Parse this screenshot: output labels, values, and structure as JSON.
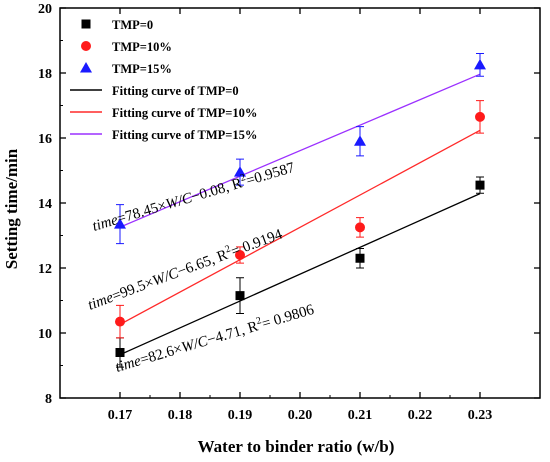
{
  "chart_data": {
    "type": "scatter",
    "xlabel": "Water to binder ratio (w/b)",
    "ylabel": "Setting time/min",
    "xlim": [
      0.16,
      0.24
    ],
    "ylim": [
      8,
      20
    ],
    "x_ticks": [
      0.17,
      0.18,
      0.19,
      0.2,
      0.21,
      0.22,
      0.23
    ],
    "x_tick_labels": [
      "0.17",
      "0.18",
      "0.19",
      "0.20",
      "0.21",
      "0.22",
      "0.23"
    ],
    "y_ticks": [
      8,
      10,
      12,
      14,
      16,
      18,
      20
    ],
    "y_tick_labels": [
      "8",
      "10",
      "12",
      "14",
      "16",
      "18",
      "20"
    ],
    "legend_position": "top-left",
    "grid": false,
    "series": [
      {
        "name": "TMP=0",
        "marker": "square",
        "color": "#000000",
        "x": [
          0.17,
          0.19,
          0.21,
          0.23
        ],
        "y": [
          9.4,
          11.15,
          12.3,
          14.55
        ],
        "err": [
          0.45,
          0.55,
          0.3,
          0.25
        ]
      },
      {
        "name": "TMP=10%",
        "marker": "circle",
        "color": "#ff1a1a",
        "x": [
          0.17,
          0.19,
          0.21,
          0.23
        ],
        "y": [
          10.35,
          12.4,
          13.25,
          16.65
        ],
        "err": [
          0.5,
          0.25,
          0.3,
          0.5
        ]
      },
      {
        "name": "TMP=15%",
        "marker": "triangle",
        "color": "#1a1aff",
        "x": [
          0.17,
          0.19,
          0.21,
          0.23
        ],
        "y": [
          13.35,
          14.95,
          15.9,
          18.25
        ],
        "err": [
          0.6,
          0.4,
          0.45,
          0.35
        ]
      }
    ],
    "fits": [
      {
        "name": "Fitting curve of TMP=0",
        "color": "#000000",
        "slope": 82.6,
        "intercept": -4.71,
        "r2": "0.9806",
        "equation_parts": [
          "time",
          "=82.6×",
          "W/C",
          "−4.71, R",
          "2",
          "= 0.9806"
        ]
      },
      {
        "name": "Fitting curve of TMP=10%",
        "color": "#ff2a2a",
        "slope": 99.5,
        "intercept": -6.65,
        "r2": "0.9194",
        "equation_parts": [
          "time",
          "=99.5×",
          "W/C",
          "−6.65, R",
          "2",
          "= 0.9194"
        ]
      },
      {
        "name": "Fitting curve of TMP=15%",
        "color": "#9b30ff",
        "slope": 78.45,
        "intercept": -0.08,
        "r2": "0.9587",
        "equation_parts": [
          "time",
          "=78.45×",
          "W/C",
          "−0.08, R",
          "2",
          "=0.9587"
        ]
      }
    ]
  }
}
